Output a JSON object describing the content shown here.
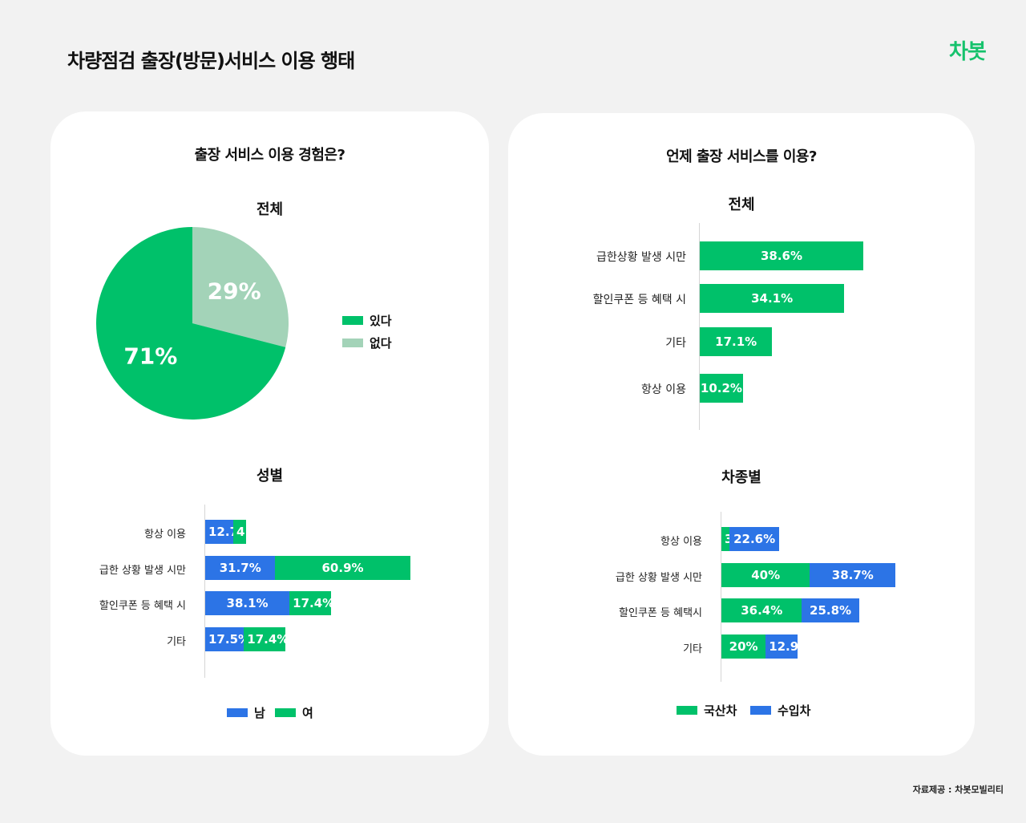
{
  "header": {
    "title": "차량점검 출장(방문)서비스 이용 행태",
    "logo_text": "차봇"
  },
  "footer": {
    "source": "자료제공 : 차봇모빌리티"
  },
  "colors": {
    "green": "#00c16a",
    "blue": "#2c74e6",
    "light_green": "#a3d3b8"
  },
  "left_panel": {
    "question": "출장 서비스 이용 경험은?",
    "pie_title": "전체",
    "gender_title": "성별"
  },
  "right_panel": {
    "question": "언제 출장 서비스를 이용?",
    "overall_title": "전체",
    "cartype_title": "차종별"
  },
  "chart_data": [
    {
      "id": "experience_overall",
      "type": "pie",
      "title": "전체",
      "slices": [
        {
          "label": "있다",
          "value": 71,
          "display": "71%",
          "color": "#00c16a"
        },
        {
          "label": "없다",
          "value": 29,
          "display": "29%",
          "color": "#a3d3b8"
        }
      ],
      "legend": [
        "있다",
        "없다"
      ],
      "legend_position": "right"
    },
    {
      "id": "usage_by_gender",
      "type": "bar",
      "orientation": "horizontal",
      "stacked": true,
      "title": "성별",
      "categories": [
        "항상 이용",
        "급한 상황 발생 시만",
        "할인쿠폰 등 혜택 시",
        "기타"
      ],
      "series": [
        {
          "name": "남",
          "values": [
            12.7,
            31.7,
            38.1,
            17.5
          ],
          "display": [
            "12.7%",
            "31.7%",
            "38.1%",
            "17.5%"
          ],
          "color": "#2c74e6"
        },
        {
          "name": "여",
          "values": [
            4.3,
            60.9,
            17.4,
            17.4
          ],
          "display": [
            "4.3%",
            "60.9%",
            "17.4%",
            "17.4%"
          ],
          "color": "#00c16a"
        }
      ],
      "series_order": [
        [
          "남",
          "여"
        ],
        [
          "남",
          "여"
        ],
        [
          "남",
          "여"
        ],
        [
          "남",
          "여"
        ]
      ],
      "legend_position": "bottom"
    },
    {
      "id": "when_overall",
      "type": "bar",
      "orientation": "horizontal",
      "title": "전체",
      "categories": [
        "급한상황 발생 시만",
        "할인쿠폰 등 혜택 시",
        "기타",
        "항상 이용"
      ],
      "values": [
        38.6,
        34.1,
        17.1,
        10.2
      ],
      "display": [
        "38.6%",
        "34.1%",
        "17.1%",
        "10.2%"
      ],
      "color": "#00c16a"
    },
    {
      "id": "usage_by_cartype",
      "type": "bar",
      "orientation": "horizontal",
      "stacked": true,
      "title": "차종별",
      "categories": [
        "항상 이용",
        "급한 상황 발생 시만",
        "할인쿠폰 등 혜택시",
        "기타"
      ],
      "series": [
        {
          "name": "국산차",
          "values": [
            3.6,
            40,
            36.4,
            20
          ],
          "display": [
            "3.6%",
            "40%",
            "36.4%",
            "20%"
          ],
          "color": "#00c16a"
        },
        {
          "name": "수입차",
          "values": [
            22.6,
            38.7,
            25.8,
            12.9
          ],
          "display": [
            "22.6%",
            "38.7%",
            "25.8%",
            "12.9%"
          ],
          "color": "#2c74e6"
        }
      ],
      "legend_position": "bottom"
    }
  ]
}
